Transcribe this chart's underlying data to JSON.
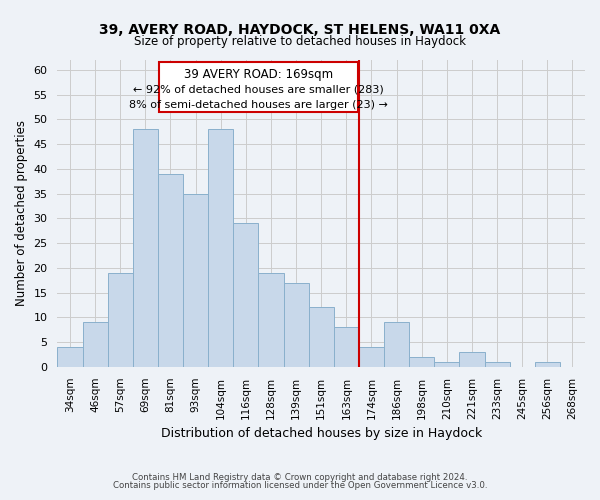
{
  "title": "39, AVERY ROAD, HAYDOCK, ST HELENS, WA11 0XA",
  "subtitle": "Size of property relative to detached houses in Haydock",
  "xlabel": "Distribution of detached houses by size in Haydock",
  "ylabel": "Number of detached properties",
  "footer_line1": "Contains HM Land Registry data © Crown copyright and database right 2024.",
  "footer_line2": "Contains public sector information licensed under the Open Government Licence v3.0.",
  "bin_labels": [
    "34sqm",
    "46sqm",
    "57sqm",
    "69sqm",
    "81sqm",
    "93sqm",
    "104sqm",
    "116sqm",
    "128sqm",
    "139sqm",
    "151sqm",
    "163sqm",
    "174sqm",
    "186sqm",
    "198sqm",
    "210sqm",
    "221sqm",
    "233sqm",
    "245sqm",
    "256sqm",
    "268sqm"
  ],
  "bar_heights": [
    4,
    9,
    19,
    48,
    39,
    35,
    48,
    29,
    19,
    17,
    12,
    8,
    4,
    9,
    2,
    1,
    3,
    1,
    0,
    1,
    0
  ],
  "bar_color": "#c8d8ea",
  "bar_edge_color": "#8ab0cc",
  "vline_color": "#cc0000",
  "annotation_title": "39 AVERY ROAD: 169sqm",
  "annotation_line1": "← 92% of detached houses are smaller (283)",
  "annotation_line2": "8% of semi-detached houses are larger (23) →",
  "annotation_box_color": "#ffffff",
  "annotation_box_edge": "#cc0000",
  "ylim": [
    0,
    62
  ],
  "yticks": [
    0,
    5,
    10,
    15,
    20,
    25,
    30,
    35,
    40,
    45,
    50,
    55,
    60
  ],
  "grid_color": "#cccccc",
  "bg_color": "#eef2f7"
}
